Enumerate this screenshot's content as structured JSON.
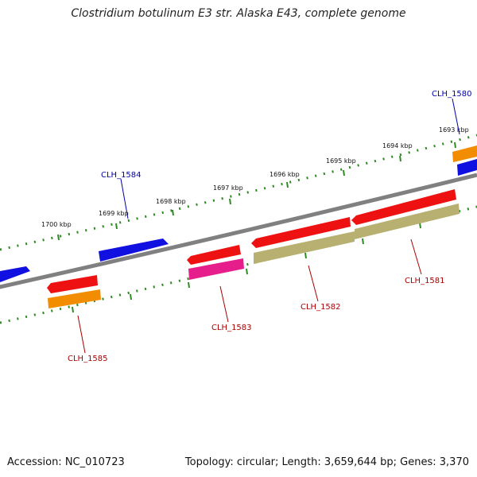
{
  "title": "Clostridium botulinum E3 str. Alaska E43, complete genome",
  "accession": "Accession: NC_010723",
  "summary": "Topology: circular; Length: 3,659,644 bp; Genes: 3,370",
  "ruler_labels": [
    "1693 kbp",
    "1694 kbp",
    "1695 kbp",
    "1696 kbp",
    "1697 kbp",
    "1698 kbp",
    "1699 kbp",
    "1700 kbp"
  ],
  "genes": [
    {
      "id": "CLH_1580",
      "strand": "forward",
      "color": "#1010e0"
    },
    {
      "id": "CLH_1581",
      "strand": "reverse",
      "color": "#ee1111"
    },
    {
      "id": "CLH_1582",
      "strand": "reverse",
      "color": "#ee1111"
    },
    {
      "id": "CLH_1583",
      "strand": "reverse",
      "color": "#ee1111"
    },
    {
      "id": "CLH_1584",
      "strand": "forward",
      "color": "#1010e0"
    },
    {
      "id": "CLH_1585",
      "strand": "reverse",
      "color": "#ee1111"
    }
  ],
  "colors": {
    "backbone": "#808080",
    "ruler": "#2e8b22",
    "forward": "#1010e0",
    "reverse": "#ee1111",
    "feature_orange": "#f28c00",
    "feature_olive": "#b8b070",
    "feature_pink": "#e61e8c"
  }
}
